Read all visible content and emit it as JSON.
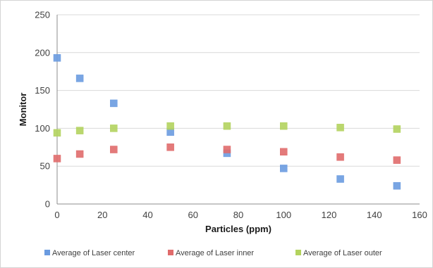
{
  "chart_data": {
    "type": "scatter",
    "title": "",
    "xlabel": "Particles (ppm)",
    "ylabel": "Monitor",
    "xlim": [
      0,
      160
    ],
    "ylim": [
      0,
      250
    ],
    "xticks": [
      0,
      20,
      40,
      60,
      80,
      100,
      120,
      140,
      160
    ],
    "yticks": [
      0,
      50,
      100,
      150,
      200,
      250
    ],
    "grid": {
      "horizontal": true,
      "vertical": false
    },
    "legend_position": "bottom",
    "series": [
      {
        "name": "Average of Laser center",
        "color": "#6a9be0",
        "marker": "square",
        "points": [
          [
            0,
            193
          ],
          [
            10,
            166
          ],
          [
            25,
            133
          ],
          [
            50,
            95
          ],
          [
            75,
            67
          ],
          [
            100,
            47
          ],
          [
            125,
            33
          ],
          [
            150,
            24
          ]
        ]
      },
      {
        "name": "Average of Laser inner",
        "color": "#e06b6b",
        "marker": "square",
        "points": [
          [
            0,
            60
          ],
          [
            10,
            66
          ],
          [
            25,
            72
          ],
          [
            50,
            75
          ],
          [
            75,
            72
          ],
          [
            100,
            69
          ],
          [
            125,
            62
          ],
          [
            150,
            58
          ]
        ]
      },
      {
        "name": "Average of Laser outer",
        "color": "#b3d35e",
        "marker": "square",
        "points": [
          [
            0,
            94
          ],
          [
            10,
            97
          ],
          [
            25,
            100
          ],
          [
            50,
            103
          ],
          [
            75,
            103
          ],
          [
            100,
            103
          ],
          [
            125,
            101
          ],
          [
            150,
            99
          ]
        ]
      }
    ]
  }
}
